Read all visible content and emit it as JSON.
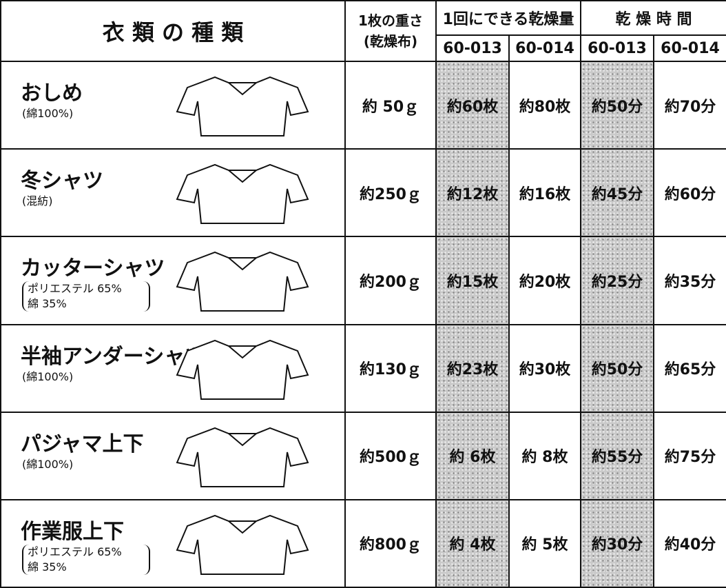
{
  "header": {
    "title": "衣 類 の 種 類",
    "weight": [
      "1枚の重さ",
      "(乾燥布)"
    ],
    "capacity": "1回にできる乾燥量",
    "time": "乾 燥 時 間",
    "models": [
      "60-013",
      "60-014",
      "60-013",
      "60-014"
    ]
  },
  "rows": [
    {
      "name": "おしめ",
      "material": [
        "(綿100%)"
      ],
      "weight": "約 50ｇ",
      "capacity": [
        "約60枚",
        "約80枚"
      ],
      "time": [
        "約50分",
        "約70分"
      ]
    },
    {
      "name": "冬シャツ",
      "material": [
        "(混紡)"
      ],
      "weight": "約250ｇ",
      "capacity": [
        "約12枚",
        "約16枚"
      ],
      "time": [
        "約45分",
        "約60分"
      ]
    },
    {
      "name": "カッターシャツ",
      "material": [
        "ポリエステル 65%",
        "綿 35%"
      ],
      "weight": "約200ｇ",
      "capacity": [
        "約15枚",
        "約20枚"
      ],
      "time": [
        "約25分",
        "約35分"
      ]
    },
    {
      "name": "半袖アンダーシャツ",
      "material": [
        "(綿100%)"
      ],
      "weight": "約130ｇ",
      "capacity": [
        "約23枚",
        "約30枚"
      ],
      "time": [
        "約50分",
        "約65分"
      ]
    },
    {
      "name": "パジャマ上下",
      "material": [
        "(綿100%)"
      ],
      "weight": "約500ｇ",
      "capacity": [
        "約 6枚",
        "約 8枚"
      ],
      "time": [
        "約55分",
        "約75分"
      ]
    },
    {
      "name": "作業服上下",
      "material": [
        "ポリエステル 65%",
        "綿 35%"
      ],
      "weight": "約800ｇ",
      "capacity": [
        "約 4枚",
        "約 5枚"
      ],
      "time": [
        "約30分",
        "約40分"
      ]
    }
  ]
}
